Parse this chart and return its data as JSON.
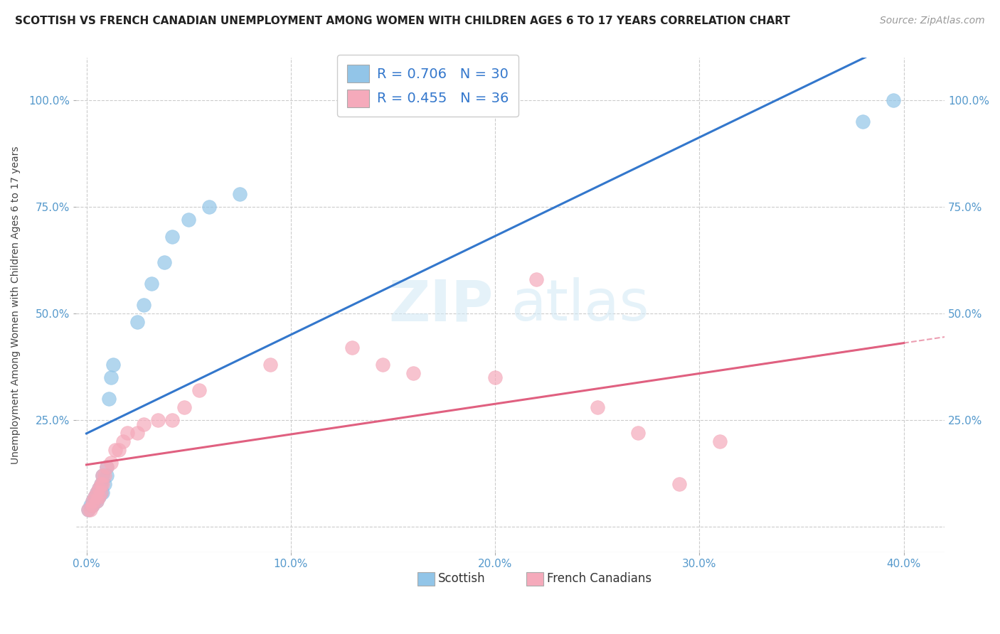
{
  "title": "SCOTTISH VS FRENCH CANADIAN UNEMPLOYMENT AMONG WOMEN WITH CHILDREN AGES 6 TO 17 YEARS CORRELATION CHART",
  "source": "Source: ZipAtlas.com",
  "ylabel": "Unemployment Among Women with Children Ages 6 to 17 years",
  "x_tick_labels": [
    "0.0%",
    "",
    "10.0%",
    "",
    "20.0%",
    "",
    "30.0%",
    "",
    "40.0%"
  ],
  "x_tick_values": [
    0.0,
    0.05,
    0.1,
    0.15,
    0.2,
    0.25,
    0.3,
    0.35,
    0.4
  ],
  "x_tick_display": [
    "0.0%",
    "10.0%",
    "20.0%",
    "30.0%",
    "40.0%"
  ],
  "x_tick_display_vals": [
    0.0,
    0.1,
    0.2,
    0.3,
    0.4
  ],
  "y_tick_labels": [
    "25.0%",
    "50.0%",
    "75.0%",
    "100.0%"
  ],
  "y_tick_values": [
    0.25,
    0.5,
    0.75,
    1.0
  ],
  "xlim": [
    -0.005,
    0.42
  ],
  "ylim": [
    -0.06,
    1.1
  ],
  "scottish_R": 0.706,
  "scottish_N": 30,
  "french_R": 0.455,
  "french_N": 36,
  "scottish_color": "#92C5E8",
  "french_color": "#F5AABB",
  "scottish_line_color": "#3377CC",
  "french_line_color": "#E06080",
  "background_color": "#FFFFFF",
  "grid_color": "#CCCCCC",
  "watermark": "ZIPatlas",
  "title_fontsize": 11,
  "source_fontsize": 10,
  "axis_label_fontsize": 10,
  "tick_fontsize": 11,
  "legend_fontsize": 14,
  "scottish_scatter_x": [
    0.001,
    0.002,
    0.003,
    0.003,
    0.004,
    0.004,
    0.005,
    0.005,
    0.006,
    0.006,
    0.007,
    0.007,
    0.008,
    0.008,
    0.009,
    0.01,
    0.01,
    0.011,
    0.012,
    0.013,
    0.025,
    0.028,
    0.032,
    0.038,
    0.042,
    0.05,
    0.06,
    0.075,
    0.38,
    0.395
  ],
  "scottish_scatter_y": [
    0.04,
    0.05,
    0.05,
    0.06,
    0.06,
    0.07,
    0.06,
    0.08,
    0.07,
    0.09,
    0.08,
    0.1,
    0.08,
    0.12,
    0.1,
    0.12,
    0.14,
    0.3,
    0.35,
    0.38,
    0.48,
    0.52,
    0.57,
    0.62,
    0.68,
    0.72,
    0.75,
    0.78,
    0.95,
    1.0
  ],
  "french_scatter_x": [
    0.001,
    0.002,
    0.003,
    0.003,
    0.004,
    0.005,
    0.005,
    0.006,
    0.006,
    0.007,
    0.007,
    0.008,
    0.008,
    0.009,
    0.01,
    0.012,
    0.014,
    0.016,
    0.018,
    0.02,
    0.025,
    0.028,
    0.035,
    0.042,
    0.048,
    0.055,
    0.09,
    0.13,
    0.145,
    0.16,
    0.2,
    0.22,
    0.25,
    0.27,
    0.29,
    0.31
  ],
  "french_scatter_y": [
    0.04,
    0.04,
    0.05,
    0.06,
    0.07,
    0.06,
    0.08,
    0.07,
    0.09,
    0.08,
    0.1,
    0.1,
    0.12,
    0.12,
    0.14,
    0.15,
    0.18,
    0.18,
    0.2,
    0.22,
    0.22,
    0.24,
    0.25,
    0.25,
    0.28,
    0.32,
    0.38,
    0.42,
    0.38,
    0.36,
    0.35,
    0.58,
    0.28,
    0.22,
    0.1,
    0.2
  ]
}
